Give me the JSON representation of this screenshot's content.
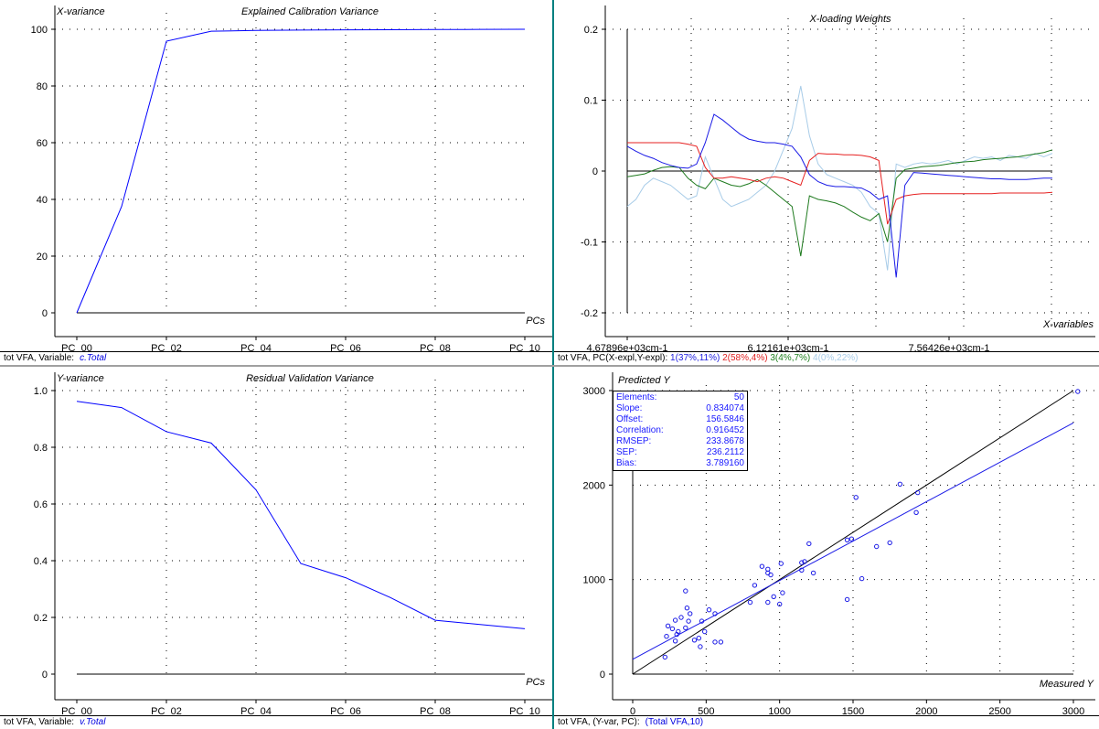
{
  "panels": {
    "tl": {
      "title": "Explained Calibration Variance",
      "ylabel": "X-variance",
      "xlabel": "PCs",
      "footer": "tot VFA, Variable:",
      "footer_var": "c.Total"
    },
    "tr": {
      "title": "X-loading Weights",
      "xlabel": "X-variables",
      "footer": "tot VFA, PC(X-expl,Y-expl):",
      "legend": [
        {
          "text": "1(37%,11%)",
          "color": "#2020e0"
        },
        {
          "text": "2(58%,4%)",
          "color": "#e02020"
        },
        {
          "text": "3(4%,7%)",
          "color": "#208020"
        },
        {
          "text": "4(0%,22%)",
          "color": "#a8cce8"
        }
      ]
    },
    "bl": {
      "title": "Residual Validation Variance",
      "ylabel": "Y-variance",
      "xlabel": "PCs",
      "footer": "tot VFA, Variable:",
      "footer_var": "v.Total"
    },
    "br": {
      "ylabel": "Predicted Y",
      "xlabel": "Measured Y",
      "footer": "tot VFA, (Y-var, PC):",
      "footer_var": "(Total VFA,10)",
      "stats": [
        {
          "label": "Elements:",
          "value": "50"
        },
        {
          "label": "Slope:",
          "value": "0.834074"
        },
        {
          "label": "Offset:",
          "value": "156.5846"
        },
        {
          "label": "Correlation:",
          "value": "0.916452"
        },
        {
          "label": "RMSEP:",
          "value": "233.8678"
        },
        {
          "label": "SEP:",
          "value": "236.2112"
        },
        {
          "label": "Bias:",
          "value": "3.789160"
        }
      ]
    }
  },
  "chart_data": [
    {
      "type": "line",
      "title": "Explained Calibration Variance",
      "ylabel": "X-variance",
      "xlabel": "PCs",
      "x": [
        0,
        1,
        2,
        3,
        4,
        5,
        6,
        7,
        8,
        9,
        10
      ],
      "xticklabels": [
        "PC_00",
        "PC_02",
        "PC_04",
        "PC_06",
        "PC_08",
        "PC_10"
      ],
      "ylim": [
        0,
        100
      ],
      "yticks": [
        0,
        20,
        40,
        60,
        80,
        100
      ],
      "series": [
        {
          "values": [
            0,
            37.5,
            95.8,
            99.3,
            99.6,
            99.7,
            99.8,
            99.85,
            99.9,
            99.95,
            100
          ],
          "color": "#0000ff"
        }
      ]
    },
    {
      "type": "line",
      "title": "X-loading Weights",
      "xlabel": "X-variables",
      "xticklabels": [
        "4.67896e+03cm-1",
        "6.12161e+03cm-1",
        "7.56426e+03cm-1"
      ],
      "ylim": [
        -0.2,
        0.2
      ],
      "yticks": [
        -0.2,
        -0.1,
        0,
        0.1,
        0.2
      ],
      "series": [
        {
          "name": "1(37%,11%)",
          "color": "#1a1ae6",
          "values": [
            0.035,
            0.028,
            0.022,
            0.018,
            0.012,
            0.008,
            0.005,
            0.004,
            0.01,
            0.04,
            0.08,
            0.072,
            0.062,
            0.052,
            0.045,
            0.042,
            0.04,
            0.04,
            0.038,
            0.035,
            0.02,
            -0.005,
            -0.015,
            -0.02,
            -0.022,
            -0.022,
            -0.023,
            -0.024,
            -0.03,
            -0.04,
            -0.035,
            -0.15,
            -0.02,
            -0.002,
            -0.003,
            -0.004,
            -0.005,
            -0.006,
            -0.007,
            -0.008,
            -0.009,
            -0.01,
            -0.011,
            -0.011,
            -0.012,
            -0.012,
            -0.012,
            -0.011,
            -0.01,
            -0.01
          ]
        },
        {
          "name": "2(58%,4%)",
          "color": "#e62020",
          "values": [
            0.04,
            0.04,
            0.04,
            0.04,
            0.04,
            0.04,
            0.04,
            0.038,
            0.035,
            0.005,
            -0.01,
            -0.01,
            -0.008,
            -0.01,
            -0.012,
            -0.015,
            -0.01,
            -0.008,
            -0.01,
            -0.015,
            -0.02,
            0.015,
            0.025,
            0.024,
            0.024,
            0.023,
            0.023,
            0.022,
            0.02,
            0.015,
            -0.075,
            -0.04,
            -0.035,
            -0.033,
            -0.032,
            -0.032,
            -0.032,
            -0.032,
            -0.032,
            -0.032,
            -0.032,
            -0.032,
            -0.032,
            -0.031,
            -0.031,
            -0.031,
            -0.031,
            -0.031,
            -0.031,
            -0.03
          ]
        },
        {
          "name": "3(4%,7%)",
          "color": "#1e7a1e",
          "values": [
            -0.008,
            -0.006,
            -0.004,
            0.001,
            0.005,
            0.006,
            0.005,
            -0.01,
            -0.02,
            -0.025,
            -0.01,
            -0.015,
            -0.02,
            -0.022,
            -0.018,
            -0.012,
            -0.02,
            -0.03,
            -0.04,
            -0.05,
            -0.12,
            -0.035,
            -0.04,
            -0.042,
            -0.045,
            -0.05,
            -0.058,
            -0.065,
            -0.07,
            -0.06,
            -0.1,
            -0.01,
            0.002,
            0.004,
            0.006,
            0.007,
            0.008,
            0.01,
            0.012,
            0.013,
            0.014,
            0.016,
            0.017,
            0.018,
            0.019,
            0.02,
            0.022,
            0.024,
            0.026,
            0.03
          ]
        },
        {
          "name": "4(0%,22%)",
          "color": "#a8cce8",
          "values": [
            -0.05,
            -0.04,
            -0.02,
            -0.01,
            -0.015,
            -0.02,
            -0.03,
            -0.04,
            -0.035,
            0.02,
            -0.01,
            -0.04,
            -0.05,
            -0.045,
            -0.04,
            -0.03,
            -0.02,
            0.0,
            0.03,
            0.06,
            0.12,
            0.05,
            0.01,
            -0.005,
            -0.01,
            -0.015,
            -0.02,
            -0.03,
            -0.05,
            -0.06,
            -0.14,
            0.01,
            0.005,
            0.01,
            0.012,
            0.01,
            0.012,
            0.015,
            0.01,
            0.015,
            0.02,
            0.018,
            0.02,
            0.015,
            0.022,
            0.02,
            0.018,
            0.025,
            0.02,
            0.025
          ]
        }
      ]
    },
    {
      "type": "line",
      "title": "Residual Validation Variance",
      "ylabel": "Y-variance",
      "xlabel": "PCs",
      "x": [
        0,
        1,
        2,
        3,
        4,
        5,
        6,
        7,
        8,
        9,
        10
      ],
      "xticklabels": [
        "PC_00",
        "PC_02",
        "PC_04",
        "PC_06",
        "PC_08",
        "PC_10"
      ],
      "ylim": [
        0,
        1.0
      ],
      "yticks": [
        0,
        0.2,
        0.4,
        0.6,
        0.8,
        1.0
      ],
      "series": [
        {
          "values": [
            0.962,
            0.94,
            0.855,
            0.815,
            0.65,
            0.39,
            0.34,
            0.27,
            0.19,
            0.175,
            0.16
          ],
          "color": "#0000ff"
        }
      ]
    },
    {
      "type": "scatter",
      "xlabel": "Measured Y",
      "ylabel": "Predicted Y",
      "xlim": [
        0,
        3000
      ],
      "ylim": [
        0,
        3000
      ],
      "xticks": [
        0,
        500,
        1000,
        1500,
        2000,
        2500,
        3000
      ],
      "yticks": [
        0,
        1000,
        2000,
        3000
      ],
      "target_line": {
        "slope": 1,
        "offset": 0,
        "color": "#000000"
      },
      "regression_line": {
        "slope": 0.834074,
        "offset": 156.5846,
        "color": "#1a1ae6"
      },
      "points": [
        [
          3030,
          2990
        ],
        [
          1940,
          1920
        ],
        [
          1820,
          2010
        ],
        [
          1930,
          1710
        ],
        [
          1520,
          1870
        ],
        [
          1750,
          1390
        ],
        [
          1660,
          1350
        ],
        [
          1560,
          1010
        ],
        [
          1490,
          1430
        ],
        [
          1460,
          1420
        ],
        [
          1460,
          790
        ],
        [
          1230,
          1070
        ],
        [
          1200,
          1380
        ],
        [
          1170,
          1190
        ],
        [
          1150,
          1180
        ],
        [
          1150,
          1100
        ],
        [
          1010,
          1170
        ],
        [
          960,
          820
        ],
        [
          1020,
          860
        ],
        [
          1000,
          740
        ],
        [
          940,
          1050
        ],
        [
          920,
          1070
        ],
        [
          920,
          1110
        ],
        [
          880,
          1140
        ],
        [
          920,
          760
        ],
        [
          830,
          940
        ],
        [
          800,
          760
        ],
        [
          600,
          340
        ],
        [
          560,
          340
        ],
        [
          560,
          640
        ],
        [
          520,
          680
        ],
        [
          490,
          450
        ],
        [
          470,
          560
        ],
        [
          450,
          380
        ],
        [
          460,
          290
        ],
        [
          420,
          360
        ],
        [
          390,
          640
        ],
        [
          380,
          560
        ],
        [
          370,
          700
        ],
        [
          360,
          880
        ],
        [
          360,
          490
        ],
        [
          330,
          600
        ],
        [
          300,
          420
        ],
        [
          290,
          350
        ],
        [
          290,
          570
        ],
        [
          270,
          480
        ],
        [
          240,
          510
        ],
        [
          230,
          400
        ],
        [
          220,
          180
        ],
        [
          310,
          450
        ]
      ]
    }
  ]
}
